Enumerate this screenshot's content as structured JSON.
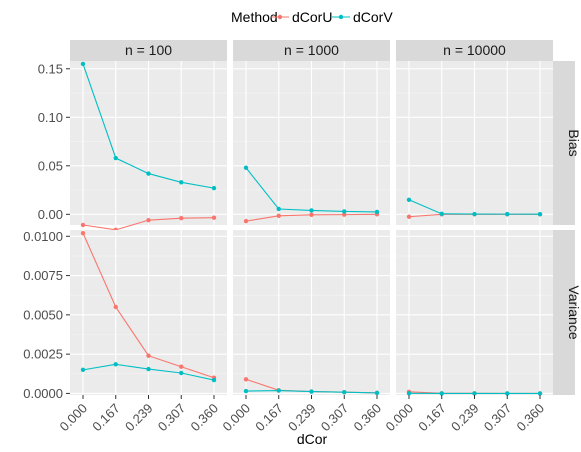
{
  "chart_data": {
    "type": "line",
    "title": "",
    "legend": {
      "title": "Method",
      "position": "top",
      "entries": [
        {
          "name": "dCorU",
          "color": "#F8766D"
        },
        {
          "name": "dCorV",
          "color": "#00BFC4"
        }
      ]
    },
    "xlabel": "dCor",
    "categories": [
      "0.000",
      "0.167",
      "0.239",
      "0.307",
      "0.360"
    ],
    "facet_columns": [
      "n = 100",
      "n = 1000",
      "n = 10000"
    ],
    "facet_rows": [
      "Bias",
      "Variance"
    ],
    "rows": [
      {
        "name": "Bias",
        "ylim": [
          -0.011,
          0.158
        ],
        "yticks": [
          0.0,
          0.05,
          0.1,
          0.15
        ],
        "ytick_labels": [
          "0.00",
          "0.05",
          "0.10",
          "0.15"
        ],
        "panels": [
          {
            "facet": "n = 100",
            "series": [
              {
                "name": "dCorU",
                "values": [
                  -0.011,
                  -0.016,
                  -0.006,
                  -0.004,
                  -0.0035
                ]
              },
              {
                "name": "dCorV",
                "values": [
                  0.155,
                  0.058,
                  0.042,
                  0.033,
                  0.027
                ]
              }
            ]
          },
          {
            "facet": "n = 1000",
            "series": [
              {
                "name": "dCorU",
                "values": [
                  -0.007,
                  -0.0015,
                  -0.0005,
                  -0.0003,
                  0.0
                ]
              },
              {
                "name": "dCorV",
                "values": [
                  0.048,
                  0.0055,
                  0.004,
                  0.003,
                  0.0025
                ]
              }
            ]
          },
          {
            "facet": "n = 10000",
            "series": [
              {
                "name": "dCorU",
                "values": [
                  -0.0025,
                  0.0,
                  0.0,
                  0.0,
                  0.0
                ]
              },
              {
                "name": "dCorV",
                "values": [
                  0.015,
                  0.0005,
                  0.0003,
                  0.0002,
                  0.0001
                ]
              }
            ]
          }
        ]
      },
      {
        "name": "Variance",
        "ylim": [
          -0.0001,
          0.0104
        ],
        "yticks": [
          0.0,
          0.0025,
          0.005,
          0.0075,
          0.01
        ],
        "ytick_labels": [
          "0.0000",
          "0.0025",
          "0.0050",
          "0.0075",
          "0.0100"
        ],
        "panels": [
          {
            "facet": "n = 100",
            "series": [
              {
                "name": "dCorU",
                "values": [
                  0.0102,
                  0.0055,
                  0.0024,
                  0.0017,
                  0.001
                ]
              },
              {
                "name": "dCorV",
                "values": [
                  0.0015,
                  0.00185,
                  0.00155,
                  0.0013,
                  0.00085
                ]
              }
            ]
          },
          {
            "facet": "n = 1000",
            "series": [
              {
                "name": "dCorU",
                "values": [
                  0.0009,
                  0.0002,
                  0.00012,
                  8e-05,
                  4e-05
                ]
              },
              {
                "name": "dCorV",
                "values": [
                  0.00015,
                  0.00018,
                  0.00012,
                  8e-05,
                  3e-05
                ]
              }
            ]
          },
          {
            "facet": "n = 10000",
            "series": [
              {
                "name": "dCorU",
                "values": [
                  0.0001,
                  1e-05,
                  1e-05,
                  0.0,
                  0.0
                ]
              },
              {
                "name": "dCorV",
                "values": [
                  1e-05,
                  0.0,
                  0.0,
                  0.0,
                  0.0
                ]
              }
            ]
          }
        ]
      }
    ]
  }
}
